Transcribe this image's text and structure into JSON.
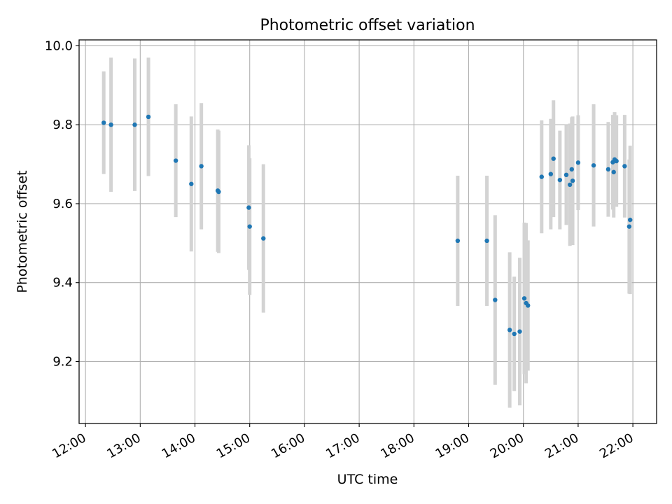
{
  "chart_data": {
    "type": "scatter",
    "title": "Photometric offset variation",
    "xlabel": "UTC time",
    "ylabel": "Photometric offset",
    "x_ticks": [
      "12:00",
      "13:00",
      "14:00",
      "15:00",
      "16:00",
      "17:00",
      "18:00",
      "19:00",
      "20:00",
      "21:00",
      "22:00"
    ],
    "y_ticks": [
      "9.2",
      "9.4",
      "9.6",
      "9.8",
      "10.0"
    ],
    "xlim": [
      "11:53",
      "22:26"
    ],
    "ylim": [
      9.043,
      10.015
    ],
    "grid": true,
    "error_bar_color": "#d3d3d3",
    "marker_color": "#1f77b4",
    "points": [
      {
        "x": "12:20",
        "y": 9.805,
        "err": 0.13
      },
      {
        "x": "12:28",
        "y": 9.8,
        "err": 0.17
      },
      {
        "x": "12:54",
        "y": 9.8,
        "err": 0.168
      },
      {
        "x": "13:09",
        "y": 9.82,
        "err": 0.15
      },
      {
        "x": "13:39",
        "y": 9.709,
        "err": 0.143
      },
      {
        "x": "13:56",
        "y": 9.65,
        "err": 0.171
      },
      {
        "x": "14:07",
        "y": 9.695,
        "err": 0.16
      },
      {
        "x": "14:25",
        "y": 9.633,
        "err": 0.155
      },
      {
        "x": "14:26",
        "y": 9.63,
        "err": 0.155
      },
      {
        "x": "14:59",
        "y": 9.59,
        "err": 0.158
      },
      {
        "x": "15:00",
        "y": 9.542,
        "err": 0.173
      },
      {
        "x": "15:15",
        "y": 9.512,
        "err": 0.188
      },
      {
        "x": "18:48",
        "y": 9.506,
        "err": 0.165
      },
      {
        "x": "19:20",
        "y": 9.506,
        "err": 0.165
      },
      {
        "x": "19:29",
        "y": 9.356,
        "err": 0.215
      },
      {
        "x": "19:45",
        "y": 9.28,
        "err": 0.197
      },
      {
        "x": "19:50",
        "y": 9.27,
        "err": 0.145
      },
      {
        "x": "19:56",
        "y": 9.276,
        "err": 0.187
      },
      {
        "x": "20:01",
        "y": 9.36,
        "err": 0.192
      },
      {
        "x": "20:03",
        "y": 9.348,
        "err": 0.203
      },
      {
        "x": "20:05",
        "y": 9.342,
        "err": 0.165
      },
      {
        "x": "20:20",
        "y": 9.668,
        "err": 0.143
      },
      {
        "x": "20:30",
        "y": 9.675,
        "err": 0.14
      },
      {
        "x": "20:33",
        "y": 9.714,
        "err": 0.148
      },
      {
        "x": "20:40",
        "y": 9.66,
        "err": 0.125
      },
      {
        "x": "20:47",
        "y": 9.673,
        "err": 0.127
      },
      {
        "x": "20:51",
        "y": 9.648,
        "err": 0.155
      },
      {
        "x": "20:53",
        "y": 9.687,
        "err": 0.132
      },
      {
        "x": "20:54",
        "y": 9.658,
        "err": 0.163
      },
      {
        "x": "21:00",
        "y": 9.704,
        "err": 0.12
      },
      {
        "x": "21:17",
        "y": 9.697,
        "err": 0.155
      },
      {
        "x": "21:33",
        "y": 9.687,
        "err": 0.12
      },
      {
        "x": "21:38",
        "y": 9.705,
        "err": 0.12
      },
      {
        "x": "21:39",
        "y": 9.68,
        "err": 0.115
      },
      {
        "x": "21:40",
        "y": 9.712,
        "err": 0.12
      },
      {
        "x": "21:42",
        "y": 9.708,
        "err": 0.116
      },
      {
        "x": "21:51",
        "y": 9.695,
        "err": 0.13
      },
      {
        "x": "21:56",
        "y": 9.542,
        "err": 0.17
      },
      {
        "x": "21:57",
        "y": 9.559,
        "err": 0.188
      }
    ]
  }
}
